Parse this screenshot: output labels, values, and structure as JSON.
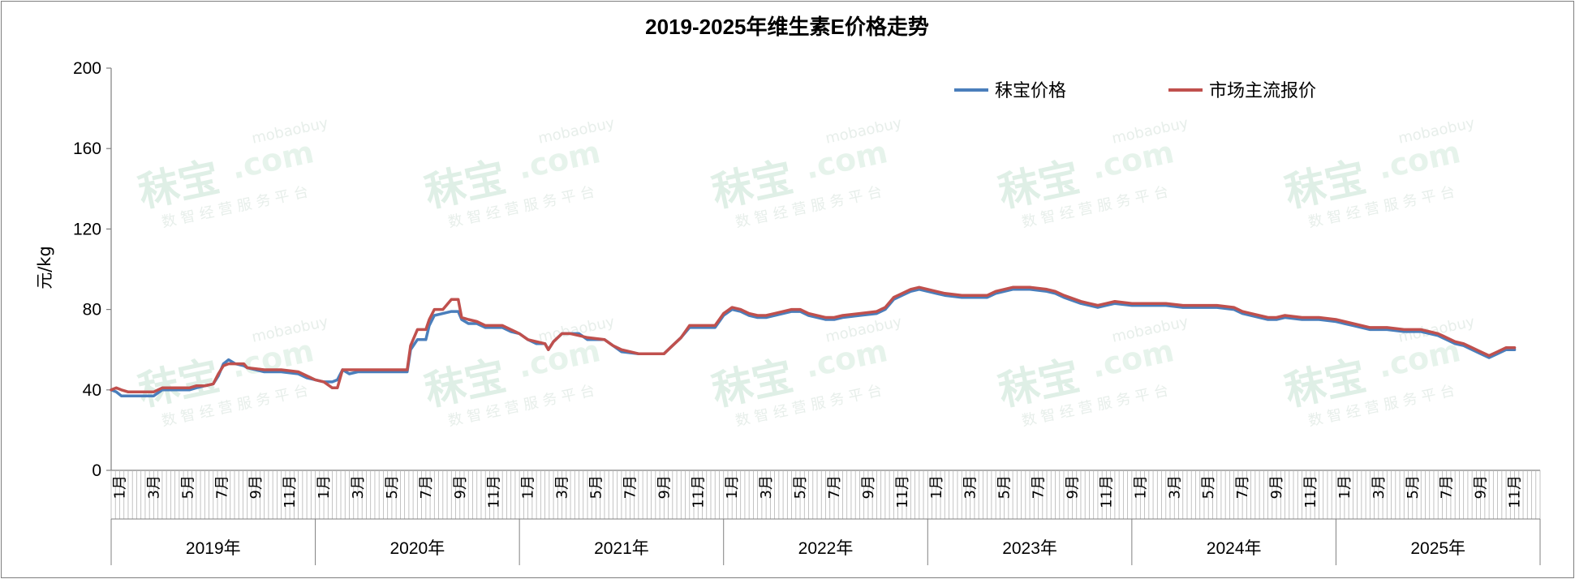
{
  "chart_data": {
    "type": "line",
    "title": "2019-2025年维生素E价格走势",
    "ylabel": "元/kg",
    "ylim": [
      0,
      200
    ],
    "y_ticks": [
      "0",
      "40",
      "80",
      "120",
      "160",
      "200"
    ],
    "legend_position": "top-right",
    "month_labels": [
      "1月",
      "3月",
      "5月",
      "7月",
      "9月",
      "11月"
    ],
    "years": [
      "2019年",
      "2020年",
      "2021年",
      "2022年",
      "2023年",
      "2024年",
      "2025年"
    ],
    "x_unit": "month index from Jan 2019",
    "x_max": 82.5,
    "series": [
      {
        "name": "秣宝价格",
        "color": "#4a7ebb",
        "points": [
          [
            0,
            40
          ],
          [
            0.3,
            39
          ],
          [
            0.6,
            37
          ],
          [
            1,
            37
          ],
          [
            2,
            37
          ],
          [
            2.5,
            37
          ],
          [
            3,
            40
          ],
          [
            4,
            40
          ],
          [
            4.6,
            40
          ],
          [
            5,
            41
          ],
          [
            5.5,
            42
          ],
          [
            6,
            43
          ],
          [
            6.3,
            47
          ],
          [
            6.6,
            53
          ],
          [
            6.9,
            55
          ],
          [
            7.3,
            53
          ],
          [
            7.8,
            52
          ],
          [
            8,
            51
          ],
          [
            9,
            49
          ],
          [
            10,
            49
          ],
          [
            11,
            48
          ],
          [
            11.5,
            46
          ],
          [
            12,
            45
          ],
          [
            12.5,
            44
          ],
          [
            13,
            44
          ],
          [
            13.3,
            45
          ],
          [
            13.6,
            50
          ],
          [
            14,
            48
          ],
          [
            14.5,
            49
          ],
          [
            15,
            49
          ],
          [
            16,
            49
          ],
          [
            17,
            49
          ],
          [
            17.4,
            49
          ],
          [
            17.6,
            60
          ],
          [
            18,
            65
          ],
          [
            18.5,
            65
          ],
          [
            18.7,
            72
          ],
          [
            19,
            77
          ],
          [
            19.5,
            78
          ],
          [
            20,
            79
          ],
          [
            20.4,
            79
          ],
          [
            20.6,
            75
          ],
          [
            21,
            73
          ],
          [
            21.5,
            73
          ],
          [
            22,
            71
          ],
          [
            23,
            71
          ],
          [
            23.5,
            69
          ],
          [
            24,
            68
          ],
          [
            24.5,
            65
          ],
          [
            25,
            63
          ],
          [
            25.5,
            63
          ],
          [
            25.7,
            60
          ],
          [
            26,
            64
          ],
          [
            26.5,
            68
          ],
          [
            27,
            68
          ],
          [
            27.5,
            68
          ],
          [
            28,
            65
          ],
          [
            29,
            65
          ],
          [
            29.5,
            62
          ],
          [
            30,
            59
          ],
          [
            31,
            58
          ],
          [
            32,
            58
          ],
          [
            32.5,
            58
          ],
          [
            33,
            62
          ],
          [
            33.5,
            66
          ],
          [
            34,
            71
          ],
          [
            35,
            71
          ],
          [
            35.5,
            71
          ],
          [
            36,
            77
          ],
          [
            36.5,
            80
          ],
          [
            37,
            79
          ],
          [
            37.5,
            77
          ],
          [
            38,
            76
          ],
          [
            38.5,
            76
          ],
          [
            39,
            77
          ],
          [
            40,
            79
          ],
          [
            40.5,
            79
          ],
          [
            41,
            77
          ],
          [
            42,
            75
          ],
          [
            42.5,
            75
          ],
          [
            43,
            76
          ],
          [
            44,
            77
          ],
          [
            45,
            78
          ],
          [
            45.5,
            80
          ],
          [
            46,
            85
          ],
          [
            46.5,
            87
          ],
          [
            47,
            89
          ],
          [
            47.5,
            90
          ],
          [
            48,
            89
          ],
          [
            48.5,
            88
          ],
          [
            49,
            87
          ],
          [
            50,
            86
          ],
          [
            51,
            86
          ],
          [
            51.5,
            86
          ],
          [
            52,
            88
          ],
          [
            53,
            90
          ],
          [
            54,
            90
          ],
          [
            55,
            89
          ],
          [
            55.5,
            88
          ],
          [
            56,
            86
          ],
          [
            57,
            83
          ],
          [
            57.5,
            82
          ],
          [
            58,
            81
          ],
          [
            58.5,
            82
          ],
          [
            59,
            83
          ],
          [
            60,
            82
          ],
          [
            61,
            82
          ],
          [
            62,
            82
          ],
          [
            63,
            81
          ],
          [
            64,
            81
          ],
          [
            65,
            81
          ],
          [
            66,
            80
          ],
          [
            66.5,
            78
          ],
          [
            67,
            77
          ],
          [
            68,
            75
          ],
          [
            68.5,
            75
          ],
          [
            69,
            76
          ],
          [
            70,
            75
          ],
          [
            71,
            75
          ],
          [
            72,
            74
          ],
          [
            72.5,
            73
          ],
          [
            73,
            72
          ],
          [
            74,
            70
          ],
          [
            75,
            70
          ],
          [
            76,
            69
          ],
          [
            77,
            69
          ],
          [
            78,
            67
          ],
          [
            78.5,
            65
          ],
          [
            79,
            63
          ],
          [
            79.5,
            62
          ],
          [
            80,
            60
          ],
          [
            80.5,
            58
          ],
          [
            81,
            56
          ],
          [
            81.5,
            58
          ],
          [
            82,
            60
          ],
          [
            82.5,
            60
          ]
        ]
      },
      {
        "name": "市场主流报价",
        "color": "#c0504d",
        "points": [
          [
            0,
            40
          ],
          [
            0.3,
            41
          ],
          [
            0.6,
            40
          ],
          [
            1,
            39
          ],
          [
            2,
            39
          ],
          [
            2.5,
            39
          ],
          [
            3,
            41
          ],
          [
            4,
            41
          ],
          [
            4.6,
            41
          ],
          [
            5,
            42
          ],
          [
            5.5,
            42
          ],
          [
            6,
            43
          ],
          [
            6.3,
            48
          ],
          [
            6.6,
            52
          ],
          [
            6.9,
            53
          ],
          [
            7.3,
            53
          ],
          [
            7.8,
            53
          ],
          [
            8,
            51
          ],
          [
            9,
            50
          ],
          [
            10,
            50
          ],
          [
            11,
            49
          ],
          [
            11.5,
            47
          ],
          [
            12,
            45
          ],
          [
            12.5,
            44
          ],
          [
            13,
            41
          ],
          [
            13.3,
            41
          ],
          [
            13.6,
            50
          ],
          [
            14,
            50
          ],
          [
            14.5,
            50
          ],
          [
            15,
            50
          ],
          [
            16,
            50
          ],
          [
            17,
            50
          ],
          [
            17.4,
            50
          ],
          [
            17.6,
            62
          ],
          [
            18,
            70
          ],
          [
            18.5,
            70
          ],
          [
            18.7,
            75
          ],
          [
            19,
            80
          ],
          [
            19.5,
            80
          ],
          [
            20,
            85
          ],
          [
            20.4,
            85
          ],
          [
            20.6,
            76
          ],
          [
            21,
            75
          ],
          [
            21.5,
            74
          ],
          [
            22,
            72
          ],
          [
            23,
            72
          ],
          [
            23.5,
            70
          ],
          [
            24,
            68
          ],
          [
            24.5,
            65
          ],
          [
            25,
            64
          ],
          [
            25.5,
            63
          ],
          [
            25.7,
            60
          ],
          [
            26,
            64
          ],
          [
            26.5,
            68
          ],
          [
            27,
            68
          ],
          [
            27.5,
            67
          ],
          [
            28,
            66
          ],
          [
            29,
            65
          ],
          [
            29.5,
            62
          ],
          [
            30,
            60
          ],
          [
            31,
            58
          ],
          [
            32,
            58
          ],
          [
            32.5,
            58
          ],
          [
            33,
            62
          ],
          [
            33.5,
            66
          ],
          [
            34,
            72
          ],
          [
            35,
            72
          ],
          [
            35.5,
            72
          ],
          [
            36,
            78
          ],
          [
            36.5,
            81
          ],
          [
            37,
            80
          ],
          [
            37.5,
            78
          ],
          [
            38,
            77
          ],
          [
            38.5,
            77
          ],
          [
            39,
            78
          ],
          [
            40,
            80
          ],
          [
            40.5,
            80
          ],
          [
            41,
            78
          ],
          [
            42,
            76
          ],
          [
            42.5,
            76
          ],
          [
            43,
            77
          ],
          [
            44,
            78
          ],
          [
            45,
            79
          ],
          [
            45.5,
            81
          ],
          [
            46,
            86
          ],
          [
            46.5,
            88
          ],
          [
            47,
            90
          ],
          [
            47.5,
            91
          ],
          [
            48,
            90
          ],
          [
            48.5,
            89
          ],
          [
            49,
            88
          ],
          [
            50,
            87
          ],
          [
            51,
            87
          ],
          [
            51.5,
            87
          ],
          [
            52,
            89
          ],
          [
            53,
            91
          ],
          [
            54,
            91
          ],
          [
            55,
            90
          ],
          [
            55.5,
            89
          ],
          [
            56,
            87
          ],
          [
            57,
            84
          ],
          [
            57.5,
            83
          ],
          [
            58,
            82
          ],
          [
            58.5,
            83
          ],
          [
            59,
            84
          ],
          [
            60,
            83
          ],
          [
            61,
            83
          ],
          [
            62,
            83
          ],
          [
            63,
            82
          ],
          [
            64,
            82
          ],
          [
            65,
            82
          ],
          [
            66,
            81
          ],
          [
            66.5,
            79
          ],
          [
            67,
            78
          ],
          [
            68,
            76
          ],
          [
            68.5,
            76
          ],
          [
            69,
            77
          ],
          [
            70,
            76
          ],
          [
            71,
            76
          ],
          [
            72,
            75
          ],
          [
            72.5,
            74
          ],
          [
            73,
            73
          ],
          [
            74,
            71
          ],
          [
            75,
            71
          ],
          [
            76,
            70
          ],
          [
            77,
            70
          ],
          [
            78,
            68
          ],
          [
            78.5,
            66
          ],
          [
            79,
            64
          ],
          [
            79.5,
            63
          ],
          [
            80,
            61
          ],
          [
            80.5,
            59
          ],
          [
            81,
            57
          ],
          [
            81.5,
            59
          ],
          [
            82,
            61
          ],
          [
            82.5,
            61
          ]
        ]
      }
    ]
  },
  "watermark": {
    "brand": "秣宝",
    "domain": ".com",
    "sub_domain": "mobaobuy",
    "tagline": "数 智 经 营 服 务 平 台"
  }
}
